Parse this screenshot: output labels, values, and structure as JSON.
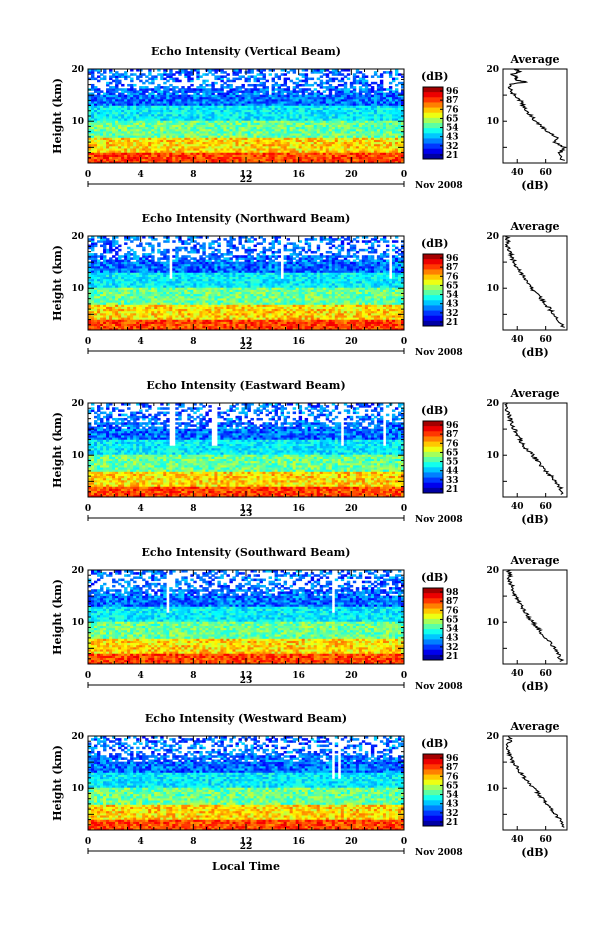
{
  "chart_data": [
    {
      "type": "heatmap",
      "title": "Echo Intensity (Vertical Beam)",
      "ylabel": "Height (km)",
      "x_ticks": [
        "0",
        "4",
        "8",
        "12",
        "16",
        "20",
        "0"
      ],
      "y_ticks": [
        "10",
        "20"
      ],
      "xlim": [
        0,
        24
      ],
      "ylim": [
        2,
        20
      ],
      "day_label": "22",
      "month_label": "Nov 2008",
      "colorbar": {
        "title": "(dB)",
        "ticks": [
          "96",
          "87",
          "76",
          "65",
          "54",
          "43",
          "32",
          "21"
        ],
        "range": [
          21,
          98
        ]
      },
      "profile": {
        "title": "Average",
        "xlabel": "(dB)",
        "x_ticks": [
          "40",
          "60"
        ],
        "xlim": [
          30,
          75
        ],
        "y_ticks": [
          "10",
          "20"
        ],
        "heights": [
          2.5,
          4,
          5,
          6,
          7,
          8,
          9,
          10,
          11,
          12,
          13,
          14,
          15,
          16,
          17,
          17.5,
          18,
          18.5,
          19,
          19.5,
          20
        ],
        "values": [
          72,
          70,
          73,
          66,
          68,
          62,
          57,
          52,
          50,
          46,
          44,
          42,
          38,
          35,
          34,
          46,
          38,
          40,
          36,
          42,
          38
        ]
      }
    },
    {
      "type": "heatmap",
      "title": "Echo Intensity (Northward Beam)",
      "ylabel": "Height (km)",
      "x_ticks": [
        "0",
        "4",
        "8",
        "12",
        "16",
        "20",
        "0"
      ],
      "y_ticks": [
        "10",
        "20"
      ],
      "xlim": [
        0,
        24
      ],
      "ylim": [
        2,
        20
      ],
      "day_label": "22",
      "month_label": "Nov 2008",
      "colorbar": {
        "title": "(dB)",
        "ticks": [
          "96",
          "87",
          "76",
          "65",
          "54",
          "43",
          "32",
          "21"
        ],
        "range": [
          21,
          98
        ]
      },
      "profile": {
        "title": "Average",
        "xlabel": "(dB)",
        "x_ticks": [
          "40",
          "60"
        ],
        "xlim": [
          30,
          75
        ],
        "y_ticks": [
          "10",
          "20"
        ],
        "heights": [
          2.5,
          4,
          5,
          6,
          7,
          8,
          9,
          10,
          11,
          12,
          13,
          14,
          15,
          16,
          17,
          18,
          19,
          20
        ],
        "values": [
          72,
          69,
          66,
          63,
          60,
          57,
          54,
          50,
          47,
          45,
          42,
          40,
          38,
          36,
          35,
          33,
          34,
          32
        ]
      }
    },
    {
      "type": "heatmap",
      "title": "Echo Intensity (Eastward Beam)",
      "ylabel": "Height (km)",
      "x_ticks": [
        "0",
        "4",
        "8",
        "12",
        "16",
        "20",
        "0"
      ],
      "y_ticks": [
        "10",
        "20"
      ],
      "xlim": [
        0,
        24
      ],
      "ylim": [
        2,
        20
      ],
      "day_label": "23",
      "month_label": "Nov 2008",
      "colorbar": {
        "title": "(dB)",
        "ticks": [
          "96",
          "87",
          "76",
          "65",
          "55",
          "44",
          "33",
          "21"
        ],
        "range": [
          21,
          98
        ]
      },
      "profile": {
        "title": "Average",
        "xlabel": "(dB)",
        "x_ticks": [
          "40",
          "60"
        ],
        "xlim": [
          30,
          75
        ],
        "y_ticks": [
          "10",
          "20"
        ],
        "heights": [
          2.5,
          4,
          5,
          6,
          7,
          8,
          9,
          10,
          11,
          12,
          13,
          14,
          15,
          16,
          17,
          18,
          19,
          20
        ],
        "values": [
          72,
          70,
          67,
          64,
          60,
          57,
          54,
          51,
          47,
          44,
          42,
          40,
          38,
          36,
          35,
          34,
          32,
          33
        ]
      }
    },
    {
      "type": "heatmap",
      "title": "Echo Intensity (Southward Beam)",
      "ylabel": "Height (km)",
      "x_ticks": [
        "0",
        "4",
        "8",
        "12",
        "16",
        "20",
        "0"
      ],
      "y_ticks": [
        "10",
        "20"
      ],
      "xlim": [
        0,
        24
      ],
      "ylim": [
        2,
        20
      ],
      "day_label": "23",
      "month_label": "Nov 2008",
      "colorbar": {
        "title": "(dB)",
        "ticks": [
          "98",
          "87",
          "76",
          "65",
          "54",
          "43",
          "32",
          "21"
        ],
        "range": [
          21,
          98
        ]
      },
      "profile": {
        "title": "Average",
        "xlabel": "(dB)",
        "x_ticks": [
          "40",
          "60"
        ],
        "xlim": [
          30,
          75
        ],
        "y_ticks": [
          "10",
          "20"
        ],
        "heights": [
          2.5,
          4,
          5,
          6,
          7,
          8,
          9,
          10,
          11,
          12,
          13,
          14,
          15,
          16,
          17,
          18,
          19,
          20
        ],
        "values": [
          71,
          69,
          66,
          63,
          60,
          57,
          54,
          51,
          48,
          45,
          43,
          41,
          39,
          37,
          36,
          34,
          35,
          33
        ]
      }
    },
    {
      "type": "heatmap",
      "title": "Echo Intensity (Westward Beam)",
      "ylabel": "Height (km)",
      "xlabel": "Local Time",
      "x_ticks": [
        "0",
        "4",
        "8",
        "12",
        "16",
        "20",
        "0"
      ],
      "y_ticks": [
        "10",
        "20"
      ],
      "xlim": [
        0,
        24
      ],
      "ylim": [
        2,
        20
      ],
      "day_label": "22",
      "month_label": "Nov 2008",
      "colorbar": {
        "title": "(dB)",
        "ticks": [
          "96",
          "87",
          "76",
          "65",
          "54",
          "43",
          "32",
          "21"
        ],
        "range": [
          21,
          98
        ]
      },
      "profile": {
        "title": "Average",
        "xlabel": "(dB)",
        "x_ticks": [
          "40",
          "60"
        ],
        "xlim": [
          30,
          75
        ],
        "y_ticks": [
          "10",
          "20"
        ],
        "heights": [
          2.5,
          4,
          5,
          6,
          7,
          8,
          9,
          10,
          11,
          12,
          13,
          14,
          15,
          16,
          17,
          18,
          19,
          20
        ],
        "values": [
          72,
          70,
          67,
          64,
          61,
          58,
          55,
          52,
          48,
          45,
          42,
          40,
          37,
          35,
          34,
          33,
          35,
          34
        ]
      }
    }
  ]
}
